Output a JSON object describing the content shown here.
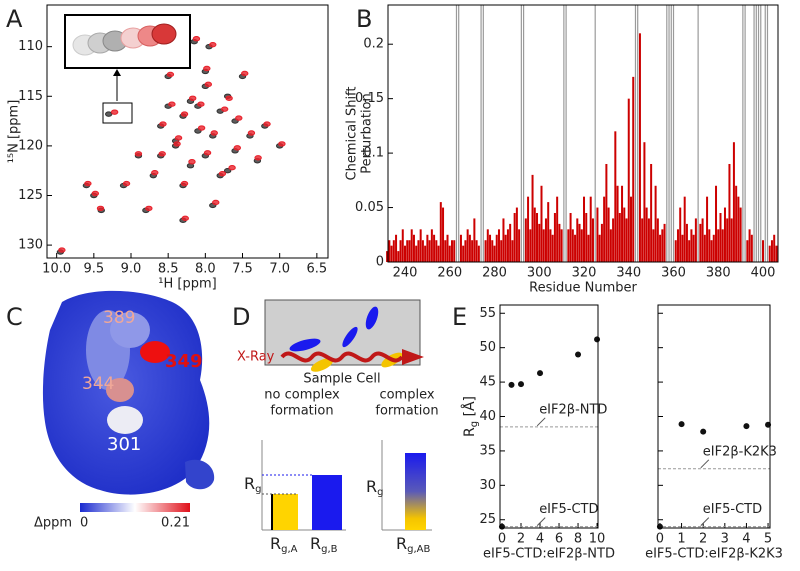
{
  "panel_labels": [
    "A",
    "B",
    "C",
    "D",
    "E"
  ],
  "panel_c": {
    "residues": [
      "389",
      "344",
      "349",
      "301"
    ],
    "colorbar": {
      "title": "Δppm",
      "min": 0,
      "max": 0.21
    }
  },
  "panel_d": {
    "beam": "X-Ray",
    "cell": "Sample Cell",
    "no_complex": [
      "no complex",
      "formation"
    ],
    "complex": [
      "complex",
      "formation"
    ],
    "rg_axis_labels": [
      {
        "r": "R",
        "sub": "g"
      },
      {
        "r": "R",
        "sub": "g"
      }
    ],
    "bar_labels": [
      {
        "r": "R",
        "sub": "g,A"
      },
      {
        "r": "R",
        "sub": "g,B"
      },
      {
        "r": "R",
        "sub": "g,AB"
      }
    ]
  },
  "chart_data": [
    {
      "type": "scatter",
      "xlabel": "¹H [ppm]",
      "ylabel": "¹⁵N [ppm]",
      "xlim": [
        10.13,
        6.35
      ],
      "ylim": [
        131.3,
        105.8
      ],
      "xticks": [
        {
          "value": 10,
          "label": "10.0"
        },
        9.5,
        {
          "value": 9,
          "label": "9.0"
        },
        8.5,
        {
          "value": 8,
          "label": "8.0"
        },
        7.5,
        {
          "value": 7,
          "label": "7.0"
        },
        6.5
      ],
      "yticks": [
        110,
        115,
        120,
        125,
        130
      ],
      "series": [
        {
          "color": "#333333",
          "x": [
            8.3,
            8.1,
            7.9,
            8.5,
            7.7,
            8.0,
            8.4,
            7.6,
            8.2,
            7.8,
            8.6,
            9.1,
            9.5,
            7.4,
            7.2,
            8.9,
            8.7,
            7.5,
            8.0,
            8.3,
            7.9,
            8.1,
            7.3,
            8.8,
            9.3,
            7.7,
            8.4,
            8.6,
            8.2,
            7.0,
            9.6,
            9.4,
            8.5,
            7.6,
            8.0,
            7.8,
            8.3,
            9.95,
            8.15,
            7.95
          ],
          "values": [
            117,
            118.5,
            119,
            116,
            115,
            121,
            120,
            117.5,
            122,
            116.5,
            118,
            124,
            125,
            119,
            118,
            121,
            123,
            113,
            114,
            124,
            126,
            116,
            121.5,
            126.5,
            116.8,
            122.5,
            119.5,
            121,
            115.5,
            120,
            124,
            126.5,
            113,
            120.5,
            112.5,
            123,
            127.5,
            130.7,
            109.5,
            110
          ]
        },
        {
          "color": "#e8202a",
          "x": [
            8.28,
            8.05,
            7.88,
            8.45,
            7.68,
            7.97,
            8.38,
            7.55,
            8.18,
            7.74,
            8.57,
            9.06,
            9.48,
            7.38,
            7.17,
            8.9,
            8.68,
            7.47,
            7.96,
            8.28,
            7.86,
            8.06,
            7.29,
            8.76,
            9.22,
            7.64,
            8.36,
            8.58,
            8.17,
            6.97,
            9.58,
            9.41,
            8.47,
            7.57,
            7.98,
            7.77,
            8.27,
            9.93,
            8.12,
            7.9
          ],
          "values": [
            116.8,
            118.2,
            118.7,
            115.8,
            115.2,
            120.7,
            119.8,
            117.2,
            121.6,
            116.3,
            117.8,
            123.8,
            124.8,
            118.7,
            117.8,
            120.8,
            122.7,
            112.7,
            113.8,
            123.8,
            125.7,
            115.8,
            121.2,
            126.3,
            116.6,
            122.2,
            119.2,
            120.8,
            115.2,
            119.8,
            123.8,
            126.3,
            112.8,
            120.2,
            112.2,
            122.8,
            127.3,
            130.5,
            109.2,
            109.8
          ]
        }
      ]
    },
    {
      "type": "bar",
      "xlabel": "Residue Number",
      "ylabel": [
        "Chemical Shift",
        "Perturbation"
      ],
      "color": "#cc0000",
      "missing_color": "#9a9a9a",
      "xlim": [
        232.4,
        406.7
      ],
      "ylim": [
        0,
        0.236
      ],
      "xticks": [
        240,
        260,
        280,
        300,
        320,
        340,
        360,
        380,
        400
      ],
      "yticks": [
        0,
        0.05,
        0.1,
        0.15,
        0.2
      ],
      "x": [
        232,
        233,
        234,
        235,
        236,
        237,
        238,
        239,
        240,
        241,
        242,
        243,
        244,
        245,
        246,
        247,
        248,
        249,
        250,
        251,
        252,
        253,
        254,
        255,
        256,
        257,
        258,
        259,
        260,
        261,
        262,
        263,
        264,
        265,
        266,
        267,
        268,
        269,
        270,
        271,
        272,
        273,
        274,
        275,
        276,
        277,
        278,
        279,
        280,
        281,
        282,
        283,
        284,
        285,
        286,
        287,
        288,
        289,
        290,
        291,
        292,
        293,
        294,
        295,
        296,
        297,
        298,
        299,
        300,
        301,
        302,
        303,
        304,
        305,
        306,
        307,
        308,
        309,
        310,
        311,
        312,
        313,
        314,
        315,
        316,
        317,
        318,
        319,
        320,
        321,
        322,
        323,
        324,
        325,
        326,
        327,
        328,
        329,
        330,
        331,
        332,
        333,
        334,
        335,
        336,
        337,
        338,
        339,
        340,
        341,
        342,
        343,
        344,
        345,
        346,
        347,
        348,
        349,
        350,
        351,
        352,
        353,
        354,
        355,
        356,
        357,
        358,
        359,
        360,
        361,
        362,
        363,
        364,
        365,
        366,
        367,
        368,
        369,
        370,
        371,
        372,
        373,
        374,
        375,
        376,
        377,
        378,
        379,
        380,
        381,
        382,
        383,
        384,
        385,
        386,
        387,
        388,
        389,
        390,
        391,
        392,
        393,
        394,
        395,
        396,
        397,
        398,
        399,
        400,
        401,
        402,
        403,
        404,
        405,
        406
      ],
      "values": [
        0.01,
        0.02,
        0.015,
        0.02,
        0.025,
        0.01,
        0.02,
        0.03,
        0.015,
        0.02,
        0.02,
        0.03,
        0.025,
        0.015,
        0.02,
        0.03,
        0.02,
        0.015,
        0.025,
        0.02,
        0.03,
        0.025,
        0.02,
        0.015,
        0.055,
        0.05,
        0.02,
        0.025,
        0.015,
        0.02,
        0.02,
        null,
        null,
        0.025,
        0.015,
        0.02,
        0.03,
        0.025,
        0.02,
        0.04,
        0.02,
        0.015,
        null,
        null,
        0.02,
        0.03,
        0.025,
        0.02,
        0.015,
        0.025,
        0.03,
        0.02,
        0.04,
        0.025,
        0.03,
        0.035,
        0.02,
        0.045,
        0.05,
        0.03,
        null,
        null,
        0.04,
        0.06,
        0.03,
        0.08,
        0.05,
        0.045,
        0.035,
        0.07,
        0.03,
        0.04,
        0.055,
        0.03,
        0.025,
        0.045,
        0.06,
        0.035,
        0.03,
        null,
        null,
        0.03,
        0.045,
        0.03,
        0.025,
        0.04,
        0.035,
        0.03,
        0.06,
        0.045,
        0.025,
        0.06,
        0.04,
        null,
        0.05,
        0.025,
        0.035,
        0.06,
        0.09,
        0.05,
        0.03,
        0.04,
        0.12,
        0.07,
        0.045,
        0.07,
        0.05,
        0.04,
        0.15,
        0.06,
        0.17,
        null,
        null,
        0.21,
        0.04,
        0.11,
        0.05,
        0.04,
        0.09,
        0.03,
        0.07,
        0.04,
        0.025,
        0.03,
        0.035,
        null,
        null,
        null,
        null,
        0.02,
        0.03,
        0.05,
        0.025,
        0.06,
        0.035,
        0.02,
        0.03,
        0.025,
        0.04,
        null,
        0.035,
        0.04,
        0.025,
        0.06,
        0.03,
        0.02,
        0.025,
        0.07,
        0.03,
        0.045,
        0.03,
        0.05,
        0.04,
        0.09,
        0.04,
        0.11,
        0.07,
        0.06,
        0.05,
        null,
        null,
        0.02,
        0.03,
        0.025,
        null,
        null,
        null,
        null,
        0.02,
        null,
        null,
        0.015,
        0.02,
        0.025,
        0.015
      ]
    },
    {
      "type": "scatter",
      "xlabel": "eIF5-CTD:eIF2β-NTD",
      "ylabel": {
        "r": "R",
        "sub": "g",
        "after": " [Å]"
      },
      "color": "#111111",
      "xlim": [
        -0.21,
        10.1
      ],
      "ylim": [
        23.8,
        56.2
      ],
      "xticks": [
        0,
        2,
        4,
        6,
        8,
        10
      ],
      "yticks": [
        25,
        30,
        35,
        40,
        45,
        50,
        55
      ],
      "show_ytick_labels": true,
      "x": [
        0,
        1,
        2,
        4,
        8,
        10
      ],
      "values": [
        24,
        44.6,
        44.7,
        46.3,
        49,
        51.2
      ],
      "reference_lines": [
        {
          "value": 38.5,
          "label": "eIF2β-NTD"
        },
        {
          "value": 24,
          "label": "eIF5-CTD"
        }
      ]
    },
    {
      "type": "scatter",
      "xlabel": "eIF5-CTD:eIF2β-K2K3",
      "color": "#111111",
      "xlim": [
        -0.09,
        5.09
      ],
      "ylim": [
        23.8,
        56.2
      ],
      "xticks": [
        0,
        1,
        2,
        3,
        4,
        5
      ],
      "yticks": [
        25,
        30,
        35,
        40,
        45,
        50,
        55
      ],
      "show_ytick_labels": false,
      "x": [
        0,
        1,
        2,
        4,
        5
      ],
      "values": [
        24,
        38.9,
        37.8,
        38.6,
        38.8
      ],
      "reference_lines": [
        {
          "value": 32.4,
          "label": "eIF2β-K2K3"
        },
        {
          "value": 24,
          "label": "eIF5-CTD"
        }
      ]
    }
  ]
}
